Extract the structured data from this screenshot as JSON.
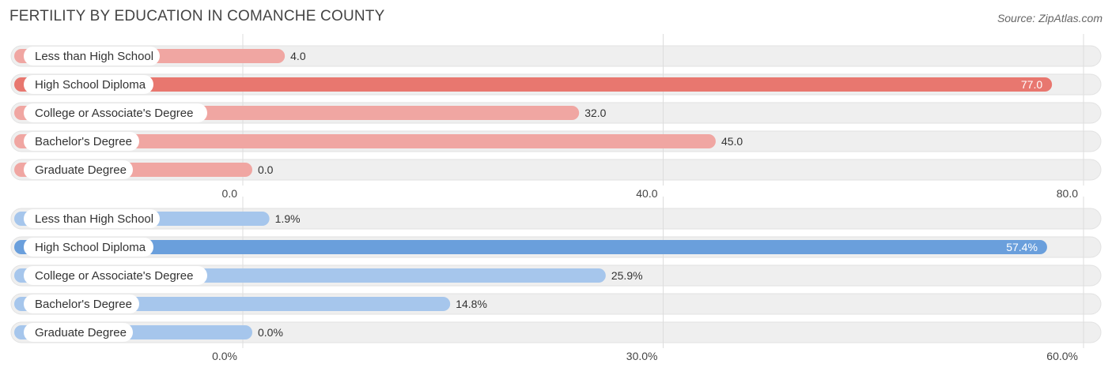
{
  "title": "FERTILITY BY EDUCATION IN COMANCHE COUNTY",
  "source": "Source: ZipAtlas.com",
  "colors": {
    "red_main": "#e8776f",
    "red_light": "#f0a6a2",
    "blue_main": "#6a9fdc",
    "blue_light": "#a6c6ec",
    "track": "#efefef",
    "grid": "#dddddd"
  },
  "chart_data": [
    {
      "type": "bar",
      "orientation": "horizontal",
      "categories": [
        "Less than High School",
        "High School Diploma",
        "College or Associate's Degree",
        "Bachelor's Degree",
        "Graduate Degree"
      ],
      "values": [
        4.0,
        77.0,
        32.0,
        45.0,
        0.0
      ],
      "value_labels": [
        "4.0",
        "77.0",
        "32.0",
        "45.0",
        "0.0"
      ],
      "xlim": [
        0,
        80
      ],
      "ticks": [
        0,
        40,
        80
      ],
      "tick_labels": [
        "0.0",
        "40.0",
        "80.0"
      ],
      "color": "red",
      "grid": true
    },
    {
      "type": "bar",
      "orientation": "horizontal",
      "categories": [
        "Less than High School",
        "High School Diploma",
        "College or Associate's Degree",
        "Bachelor's Degree",
        "Graduate Degree"
      ],
      "values": [
        1.9,
        57.4,
        25.9,
        14.8,
        0.0
      ],
      "value_labels": [
        "1.9%",
        "57.4%",
        "25.9%",
        "14.8%",
        "0.0%"
      ],
      "xlim": [
        0,
        60
      ],
      "ticks": [
        0,
        30,
        60
      ],
      "tick_labels": [
        "0.0%",
        "30.0%",
        "60.0%"
      ],
      "color": "blue",
      "grid": true
    }
  ]
}
